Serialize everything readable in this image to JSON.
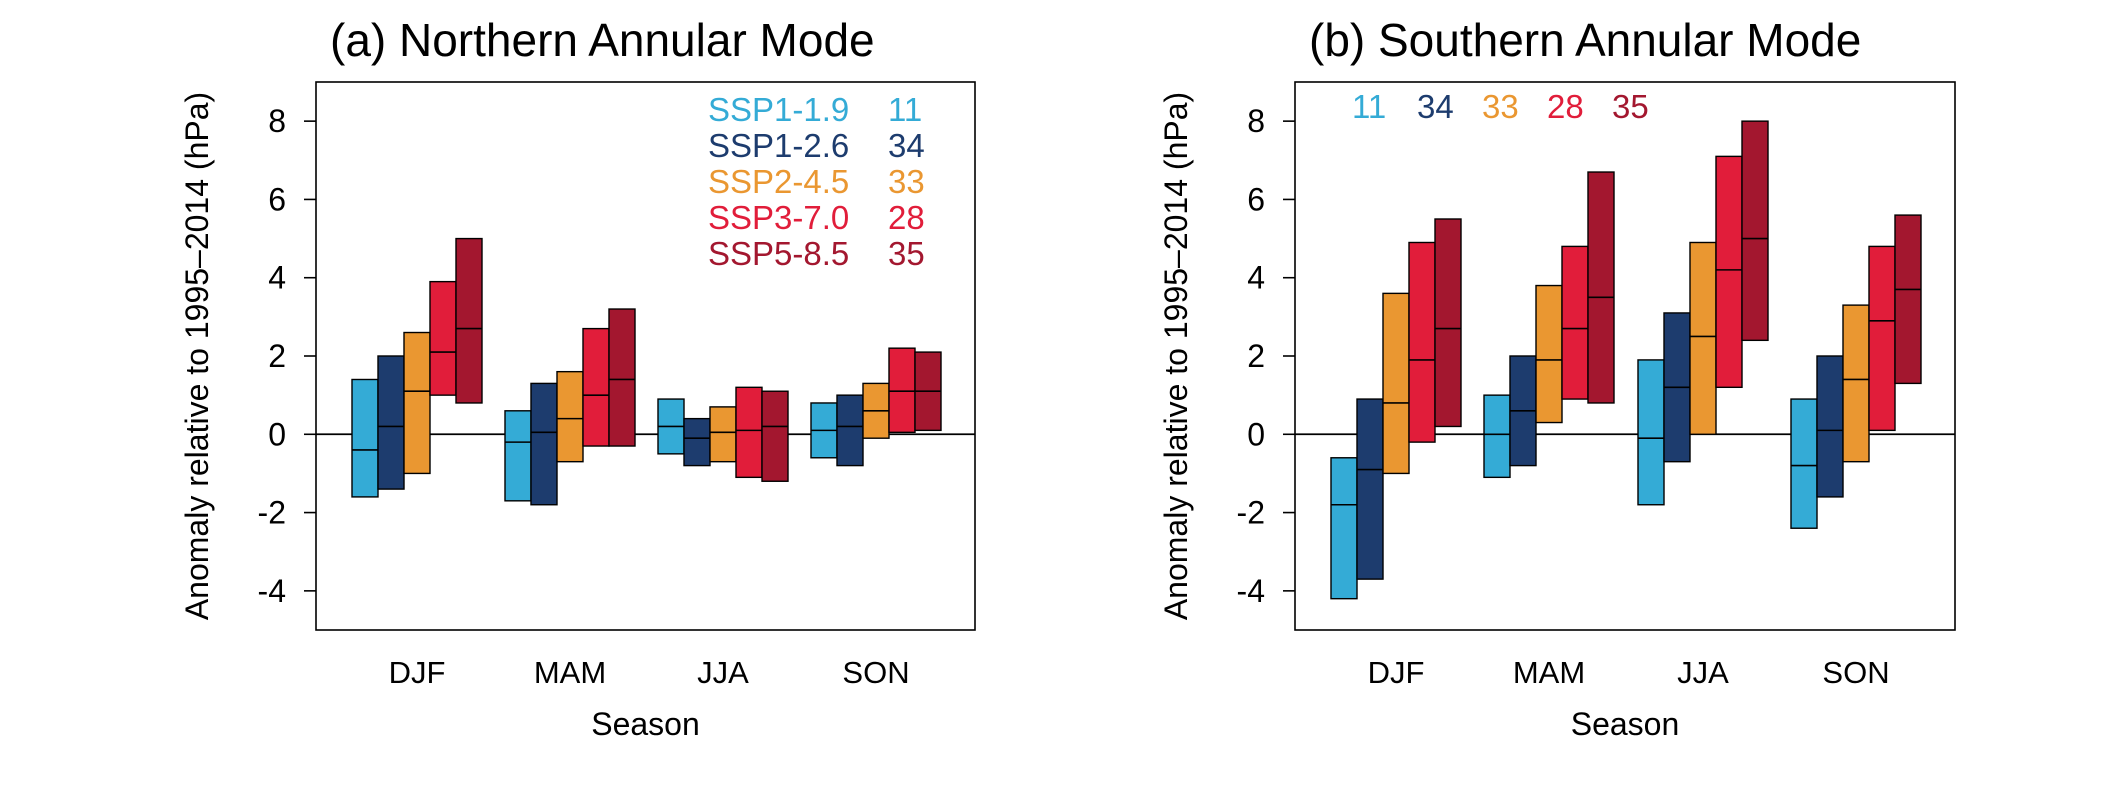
{
  "chart_data": [
    {
      "type": "bar",
      "title": "(a) Northern Annular Mode",
      "xlabel": "Season",
      "ylabel": "Anomaly relative to 1995–2014 (hPa)",
      "ylim": [
        -5,
        9
      ],
      "yticks": [
        -4,
        -2,
        0,
        2,
        4,
        6,
        8
      ],
      "ytick_labels": [
        "-4",
        "-2",
        "0",
        "2",
        "4",
        "6",
        "8"
      ],
      "categories": [
        "DJF",
        "MAM",
        "JJA",
        "SON"
      ],
      "grid": false,
      "legend": {
        "placement": "top-right",
        "show_names": true
      },
      "series": [
        {
          "name": "SSP1-1.9",
          "count": "11",
          "color": "#34abd6",
          "low": [
            -1.6,
            -1.7,
            -0.5,
            -0.6
          ],
          "median": [
            -0.4,
            -0.2,
            0.2,
            0.1
          ],
          "high": [
            1.4,
            0.6,
            0.9,
            0.8
          ]
        },
        {
          "name": "SSP1-2.6",
          "count": "34",
          "color": "#1d3c6e",
          "low": [
            -1.4,
            -1.8,
            -0.8,
            -0.8
          ],
          "median": [
            0.2,
            0.05,
            -0.1,
            0.2
          ],
          "high": [
            2.0,
            1.3,
            0.4,
            1.0
          ]
        },
        {
          "name": "SSP2-4.5",
          "count": "33",
          "color": "#ea9731",
          "low": [
            -1.0,
            -0.7,
            -0.7,
            -0.1
          ],
          "median": [
            1.1,
            0.4,
            0.05,
            0.6
          ],
          "high": [
            2.6,
            1.6,
            0.7,
            1.3
          ]
        },
        {
          "name": "SSP3-7.0",
          "count": "28",
          "color": "#e11d3a",
          "low": [
            1.0,
            -0.3,
            -1.1,
            0.05
          ],
          "median": [
            2.1,
            1.0,
            0.1,
            1.1
          ],
          "high": [
            3.9,
            2.7,
            1.2,
            2.2
          ]
        },
        {
          "name": "SSP5-8.5",
          "count": "35",
          "color": "#a3172f",
          "low": [
            0.8,
            -0.3,
            -1.2,
            0.1
          ],
          "median": [
            2.7,
            1.4,
            0.2,
            1.1
          ],
          "high": [
            5.0,
            3.2,
            1.1,
            2.1
          ]
        }
      ]
    },
    {
      "type": "bar",
      "title": "(b) Southern Annular Mode",
      "xlabel": "Season",
      "ylabel": "Anomaly relative to 1995–2014 (hPa)",
      "ylim": [
        -5,
        9
      ],
      "yticks": [
        -4,
        -2,
        0,
        2,
        4,
        6,
        8
      ],
      "ytick_labels": [
        "-4",
        "-2",
        "0",
        "2",
        "4",
        "6",
        "8"
      ],
      "categories": [
        "DJF",
        "MAM",
        "JJA",
        "SON"
      ],
      "grid": false,
      "legend": {
        "placement": "top-left",
        "show_names": false
      },
      "series": [
        {
          "name": "SSP1-1.9",
          "count": "11",
          "color": "#34abd6",
          "low": [
            -4.2,
            -1.1,
            -1.8,
            -2.4
          ],
          "median": [
            -1.8,
            0.0,
            -0.1,
            -0.8
          ],
          "high": [
            -0.6,
            1.0,
            1.9,
            0.9
          ]
        },
        {
          "name": "SSP1-2.6",
          "count": "34",
          "color": "#1d3c6e",
          "low": [
            -3.7,
            -0.8,
            -0.7,
            -1.6
          ],
          "median": [
            -0.9,
            0.6,
            1.2,
            0.1
          ],
          "high": [
            0.9,
            2.0,
            3.1,
            2.0
          ]
        },
        {
          "name": "SSP2-4.5",
          "count": "33",
          "color": "#ea9731",
          "low": [
            -1.0,
            0.3,
            0.0,
            -0.7
          ],
          "median": [
            0.8,
            1.9,
            2.5,
            1.4
          ],
          "high": [
            3.6,
            3.8,
            4.9,
            3.3
          ]
        },
        {
          "name": "SSP3-7.0",
          "count": "28",
          "color": "#e11d3a",
          "low": [
            -0.2,
            0.9,
            1.2,
            0.1
          ],
          "median": [
            1.9,
            2.7,
            4.2,
            2.9
          ],
          "high": [
            4.9,
            4.8,
            7.1,
            4.8
          ]
        },
        {
          "name": "SSP5-8.5",
          "count": "35",
          "color": "#a3172f",
          "low": [
            0.2,
            0.8,
            2.4,
            1.3
          ],
          "median": [
            2.7,
            3.5,
            5.0,
            3.7
          ],
          "high": [
            5.5,
            6.7,
            8.0,
            5.6
          ]
        }
      ]
    }
  ]
}
